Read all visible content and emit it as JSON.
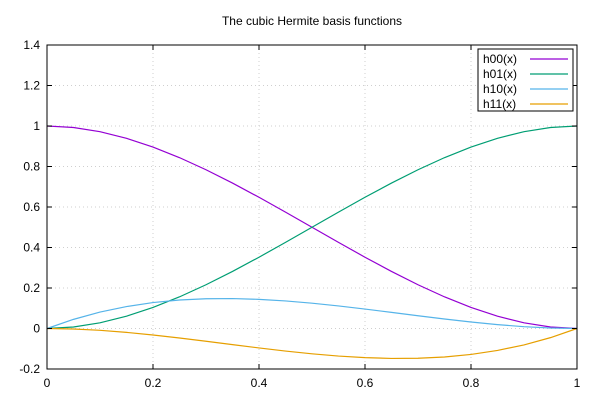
{
  "chart_data": {
    "type": "line",
    "title": "The cubic Hermite basis functions",
    "xlabel": "",
    "ylabel": "",
    "xlim": [
      0,
      1
    ],
    "ylim": [
      -0.2,
      1.4
    ],
    "xticks": [
      0,
      0.2,
      0.4,
      0.6,
      0.8,
      1
    ],
    "xtick_labels": [
      "0",
      "0.2",
      "0.4",
      "0.6",
      "0.8",
      "1"
    ],
    "yticks": [
      -0.2,
      0,
      0.2,
      0.4,
      0.6,
      0.8,
      1,
      1.2,
      1.4
    ],
    "ytick_labels": [
      "-0.2",
      "0",
      "0.2",
      "0.4",
      "0.6",
      "0.8",
      "1",
      "1.2",
      "1.4"
    ],
    "grid": true,
    "legend_position": "top-right",
    "x": [
      0,
      0.05,
      0.1,
      0.15,
      0.2,
      0.25,
      0.3,
      0.35,
      0.4,
      0.45,
      0.5,
      0.55,
      0.6,
      0.65,
      0.7,
      0.75,
      0.8,
      0.85,
      0.9,
      0.95,
      1
    ],
    "series": [
      {
        "name": "h00(x)",
        "color": "#9400d3",
        "values": [
          1,
          0.99275,
          0.972,
          0.93925,
          0.896,
          0.84375,
          0.784,
          0.71825,
          0.648,
          0.57475,
          0.5,
          0.42525,
          0.352,
          0.28175,
          0.216,
          0.15625,
          0.104,
          0.06075,
          0.028,
          0.00725,
          0
        ]
      },
      {
        "name": "h01(x)",
        "color": "#009e73",
        "values": [
          0,
          0.00725,
          0.028,
          0.06075,
          0.104,
          0.15625,
          0.216,
          0.28175,
          0.352,
          0.42525,
          0.5,
          0.57475,
          0.648,
          0.71825,
          0.784,
          0.84375,
          0.896,
          0.93925,
          0.972,
          0.99275,
          1
        ]
      },
      {
        "name": "h10(x)",
        "color": "#56b4e9",
        "values": [
          0,
          0.045125,
          0.081,
          0.108375,
          0.128,
          0.140625,
          0.147,
          0.147875,
          0.144,
          0.136125,
          0.125,
          0.111375,
          0.096,
          0.079625,
          0.063,
          0.046875,
          0.032,
          0.019125,
          0.009,
          0.002375,
          0
        ]
      },
      {
        "name": "h11(x)",
        "color": "#e69f00",
        "values": [
          0,
          -0.002375,
          -0.009,
          -0.019125,
          -0.032,
          -0.046875,
          -0.063,
          -0.079625,
          -0.096,
          -0.111375,
          -0.125,
          -0.136125,
          -0.144,
          -0.147875,
          -0.147,
          -0.140625,
          -0.128,
          -0.108375,
          -0.081,
          -0.045125,
          0
        ]
      }
    ]
  }
}
